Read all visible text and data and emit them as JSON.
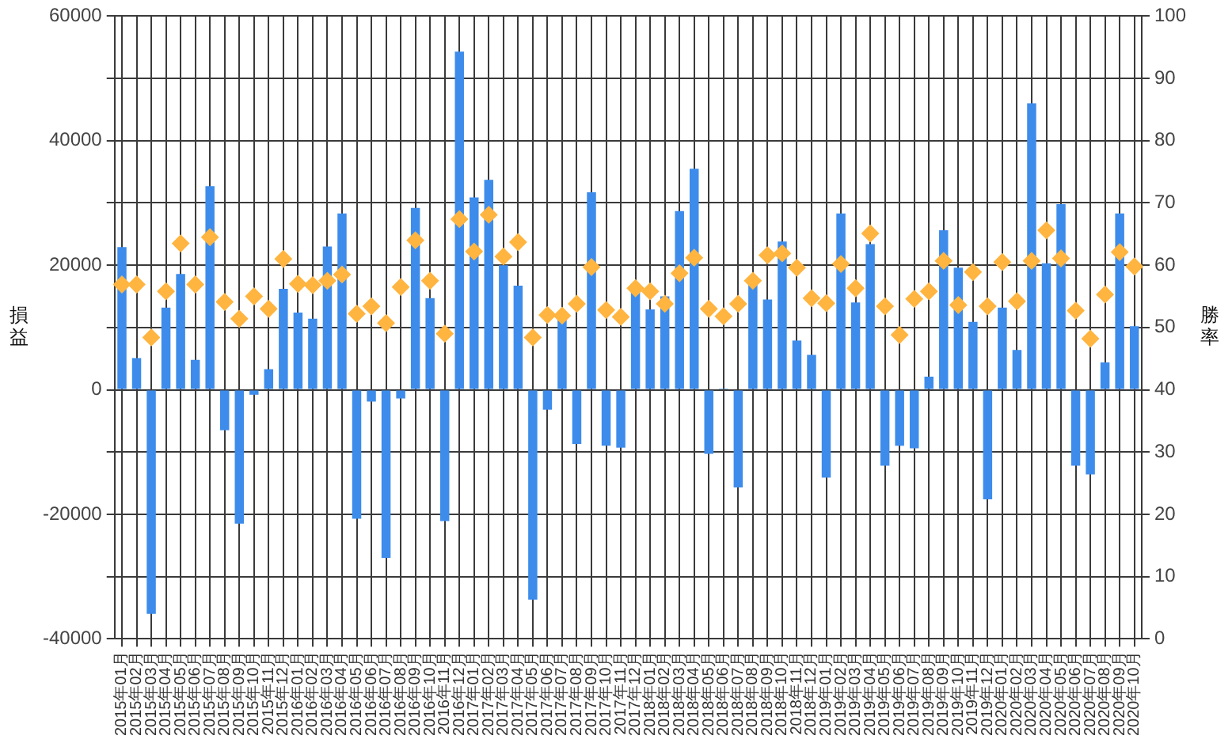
{
  "chart_data": {
    "type": "bar",
    "categories": [
      "2015年01月",
      "2015年02月",
      "2015年03月",
      "2015年04月",
      "2015年05月",
      "2015年06月",
      "2015年07月",
      "2015年08月",
      "2015年09月",
      "2015年10月",
      "2015年11月",
      "2015年12月",
      "2016年01月",
      "2016年02月",
      "2016年03月",
      "2016年04月",
      "2016年05月",
      "2016年06月",
      "2016年07月",
      "2016年08月",
      "2016年09月",
      "2016年10月",
      "2016年11月",
      "2016年12月",
      "2017年01月",
      "2017年02月",
      "2017年03月",
      "2017年04月",
      "2017年05月",
      "2017年06月",
      "2017年07月",
      "2017年08月",
      "2017年09月",
      "2017年10月",
      "2017年11月",
      "2017年12月",
      "2018年01月",
      "2018年02月",
      "2018年03月",
      "2018年04月",
      "2018年05月",
      "2018年06月",
      "2018年07月",
      "2018年08月",
      "2018年09月",
      "2018年10月",
      "2018年11月",
      "2018年12月",
      "2019年01月",
      "2019年02月",
      "2019年03月",
      "2019年04月",
      "2019年05月",
      "2019年06月",
      "2019年07月",
      "2019年08月",
      "2019年09月",
      "2019年10月",
      "2019年11月",
      "2019年12月",
      "2020年01月",
      "2020年02月",
      "2020年03月",
      "2020年04月",
      "2020年05月",
      "2020年06月",
      "2020年07月",
      "2020年08月",
      "2020年09月",
      "2020年10月"
    ],
    "series": [
      {
        "color": "#3d8ceb",
        "values": [
          22900,
          5100,
          -36000,
          13200,
          18600,
          4800,
          32700,
          -6500,
          -21500,
          -800,
          3300,
          16200,
          12400,
          11400,
          23000,
          28300,
          -20700,
          -1900,
          -27000,
          -1400,
          29200,
          14700,
          -21100,
          54300,
          30900,
          33700,
          20000,
          16700,
          -33700,
          -3200,
          11400,
          -8700,
          31700,
          -9000,
          -9300,
          16000,
          12900,
          15000,
          28700,
          35500,
          -10300,
          200,
          -15700,
          17000,
          14500,
          23800,
          7900,
          5600,
          -14100,
          28300,
          14000,
          23400,
          -12200,
          -9000,
          -9400,
          2100,
          25600,
          19600,
          10900,
          -17600,
          13200,
          6400,
          46000,
          20300,
          29800,
          -12200,
          -13600,
          4400,
          28300,
          10200
        ]
      },
      {
        "type": "scatter",
        "color": "#ffb540",
        "axis": "y2",
        "values": [
          56.9,
          56.9,
          48.4,
          55.8,
          63.5,
          56.9,
          64.5,
          54.1,
          51.4,
          55,
          53,
          61,
          57,
          56.8,
          57.5,
          58.5,
          52.2,
          53.4,
          50.7,
          56.5,
          64,
          57.5,
          49,
          67.4,
          62.2,
          68.1,
          61.4,
          63.7,
          48.4,
          52,
          51.9,
          53.8,
          59.7,
          52.8,
          51.7,
          56.3,
          55.8,
          53.8,
          58.7,
          61.2,
          53,
          51.8,
          53.8,
          57.5,
          61.6,
          61.9,
          59.6,
          54.7,
          53.9,
          60.2,
          56.3,
          65.1,
          53.4,
          48.8,
          54.6,
          55.8,
          60.7,
          53.6,
          58.9,
          53.4,
          60.5,
          54.2,
          60.7,
          65.6,
          61.1,
          52.7,
          48.2,
          55.3,
          62.1,
          59.8
        ]
      }
    ],
    "ylabel": "損益",
    "y2label": "勝率",
    "ylim": [
      -40000,
      60000
    ],
    "yticks": [
      -40000,
      {
        "value": -30000,
        "label": null
      },
      -20000,
      {
        "value": -10000,
        "label": null
      },
      0,
      {
        "value": 10000,
        "label": null
      },
      20000,
      {
        "value": 30000,
        "label": null
      },
      40000,
      {
        "value": 50000,
        "label": null
      },
      60000
    ],
    "y2lim": [
      0,
      100
    ],
    "y2ticks": [
      0,
      10,
      20,
      30,
      40,
      50,
      60,
      70,
      80,
      90,
      100
    ],
    "grid": true,
    "legend": false,
    "marker": "diamond"
  }
}
